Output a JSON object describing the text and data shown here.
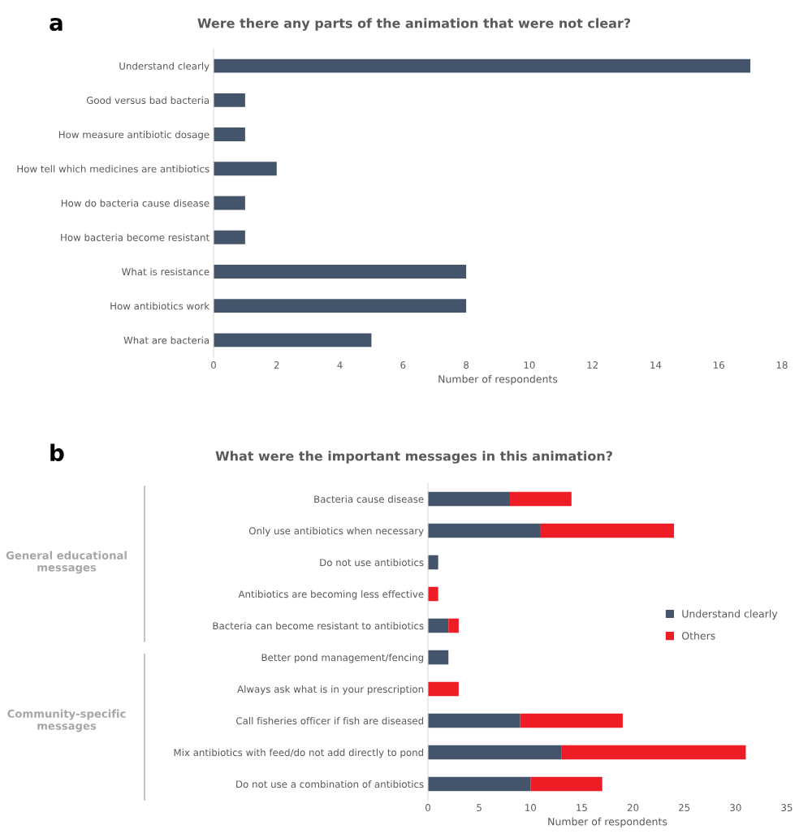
{
  "chart_data": [
    {
      "type": "bar",
      "orientation": "horizontal",
      "title": "Were there any parts of the animation that were not clear?",
      "xlabel": "Number of respondents",
      "categories": [
        "Understand clearly",
        "Good versus bad bacteria",
        "How measure antibiotic dosage",
        "How tell which medicines are antibiotics",
        "How do bacteria cause disease",
        "How bacteria become resistant",
        "What is resistance",
        "How antibiotics work",
        "What are bacteria"
      ],
      "series": [
        {
          "color": "#44546a",
          "values": [
            17,
            1,
            1,
            2,
            1,
            1,
            8,
            8,
            5
          ]
        }
      ],
      "xlim": [
        0,
        18
      ],
      "xticks": [
        0,
        2,
        4,
        6,
        8,
        10,
        12,
        14,
        16,
        18
      ],
      "grid": false,
      "legend": false,
      "annotations": [
        "a"
      ]
    },
    {
      "type": "bar",
      "orientation": "horizontal",
      "stacked": true,
      "title": "What were the important messages in this animation?",
      "xlabel": "Number of respondents",
      "categories": [
        "Bacteria cause disease",
        "Only use antibiotics when necessary",
        "Do not use antibiotics",
        "Antibiotics are becoming less effective",
        "Bacteria can become resistant to antibiotics",
        "Better pond management/fencing",
        "Always ask what is in your prescription",
        "Call fisheries officer if fish are diseased",
        "Mix antibiotics with feed/do not add directly to pond",
        "Do not use a combination of antibiotics"
      ],
      "series": [
        {
          "name": "Understand clearly",
          "color": "#44546a",
          "values": [
            8,
            11,
            1,
            0,
            2,
            2,
            0,
            9,
            13,
            10
          ]
        },
        {
          "name": "Others",
          "color": "#ee1c24",
          "values": [
            6,
            13,
            0,
            1,
            1,
            0,
            3,
            10,
            18,
            7
          ]
        }
      ],
      "xlim": [
        0,
        35
      ],
      "xticks": [
        0,
        5,
        10,
        15,
        20,
        25,
        30,
        35
      ],
      "grid": false,
      "legend": "right",
      "annotations": [
        "b",
        "General educational messages",
        "Community-specific messages"
      ]
    }
  ]
}
